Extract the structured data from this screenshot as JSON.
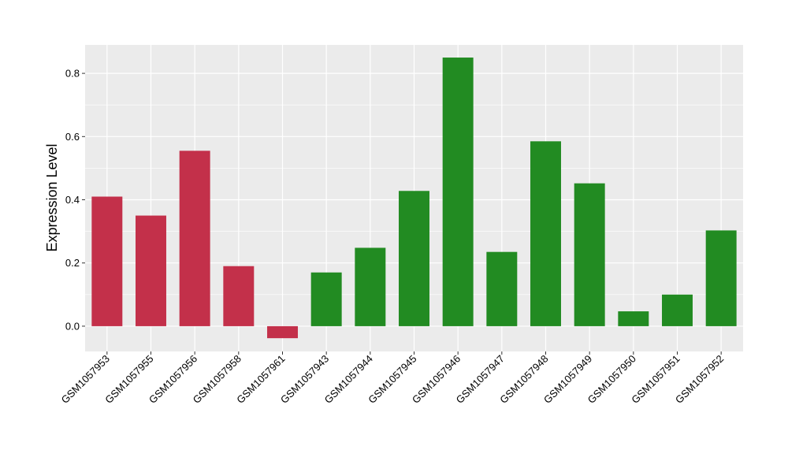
{
  "chart_data": {
    "type": "bar",
    "title": "",
    "xlabel": "",
    "ylabel": "Expression Level",
    "categories": [
      "GSM1057953",
      "GSM1057955",
      "GSM1057956",
      "GSM1057958",
      "GSM1057961",
      "GSM1057943",
      "GSM1057944",
      "GSM1057945",
      "GSM1057946",
      "GSM1057947",
      "GSM1057948",
      "GSM1057949",
      "GSM1057950",
      "GSM1057951",
      "GSM1057952"
    ],
    "values": [
      0.41,
      0.35,
      0.555,
      0.19,
      -0.038,
      0.17,
      0.248,
      0.428,
      0.85,
      0.235,
      0.585,
      0.452,
      0.047,
      0.1,
      0.303
    ],
    "bar_colors": [
      "#c3304a",
      "#c3304a",
      "#c3304a",
      "#c3304a",
      "#c3304a",
      "#228b22",
      "#228b22",
      "#228b22",
      "#228b22",
      "#228b22",
      "#228b22",
      "#228b22",
      "#228b22",
      "#228b22",
      "#228b22"
    ],
    "ylim": [
      -0.08,
      0.89
    ],
    "yticks": [
      0.0,
      0.2,
      0.4,
      0.6,
      0.8
    ],
    "ytick_labels": [
      "0.0",
      "0.2",
      "0.4",
      "0.6",
      "0.8"
    ],
    "grid": true,
    "panel_background": "#ebebeb",
    "grid_color": "#ffffff",
    "legend": "none"
  }
}
